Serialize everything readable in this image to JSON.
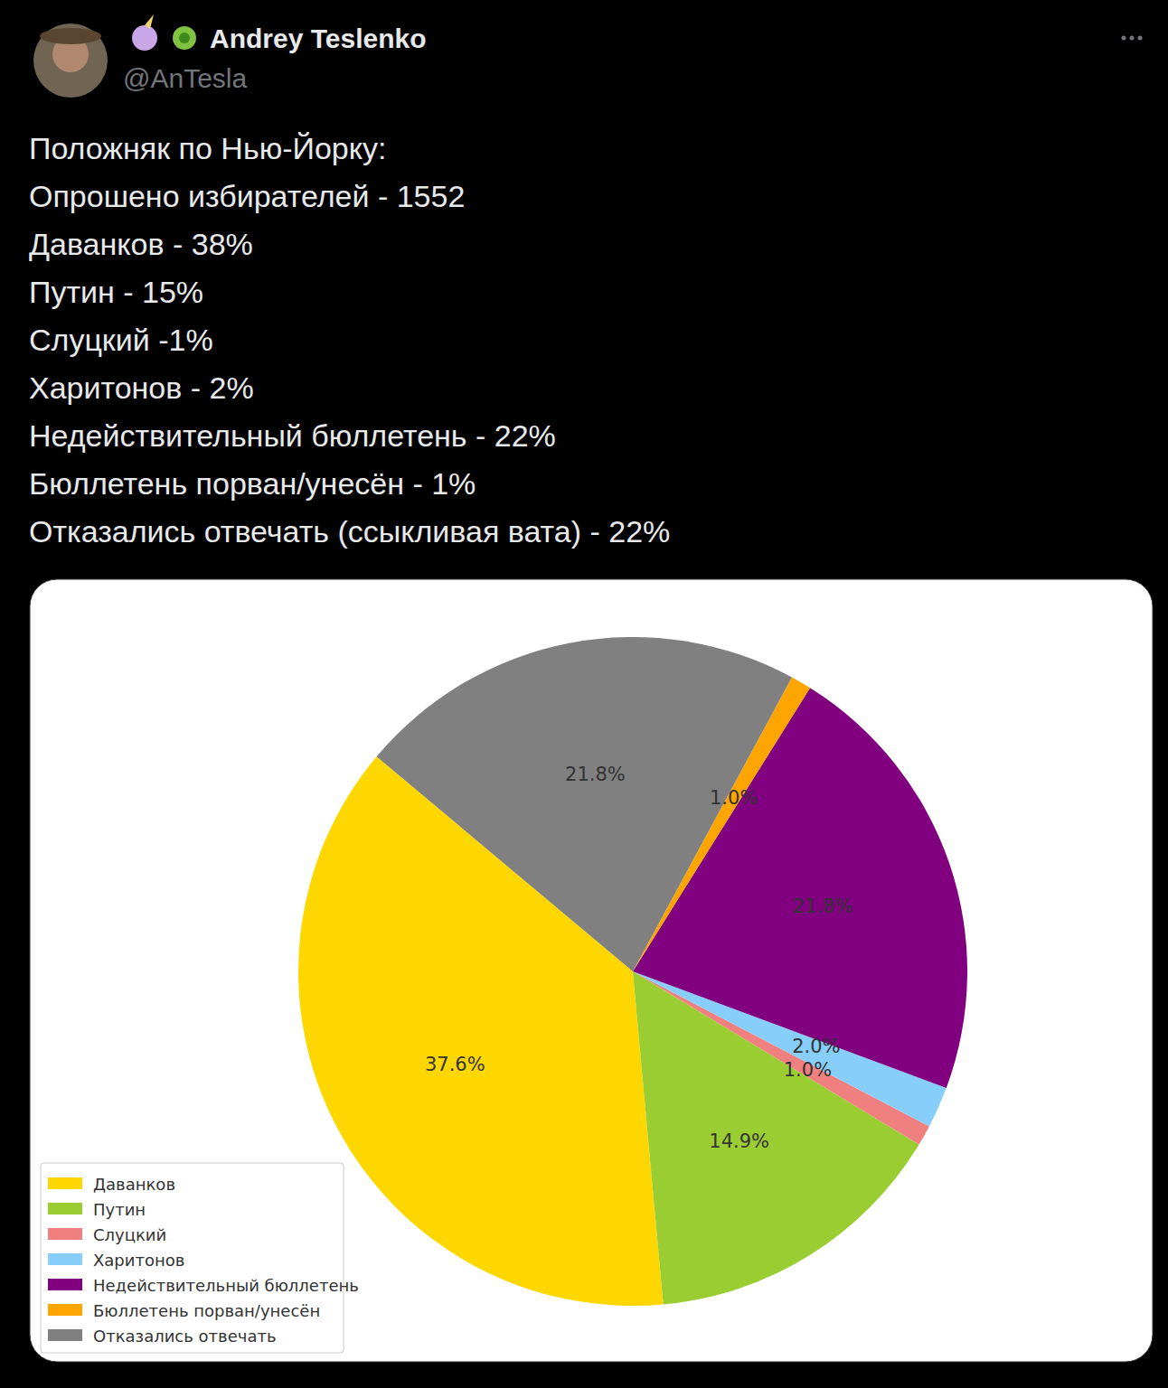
{
  "tweet": {
    "author": "Andrey Teslenko",
    "handle": "@AnTesla",
    "lines": [
      "Положняк по Нью-Йорку:",
      "Опрошено избирателей - 1552",
      "Даванков - 38%",
      "Путин - 15%",
      "Слуцкий -1%",
      "Харитонов - 2%",
      "Недействительный бюллетень - 22%",
      "Бюллетень порван/унесён - 1%",
      "Отказались отвечать (ссыкливая вата) - 22%"
    ]
  },
  "chart_data": {
    "type": "pie",
    "categories": [
      "Даванков",
      "Путин",
      "Слуцкий",
      "Харитонов",
      "Недействительный бюллетень",
      "Бюллетень порван/унесён",
      "Отказались отвечать"
    ],
    "values": [
      37.6,
      14.9,
      1.0,
      2.0,
      21.8,
      1.0,
      21.8
    ],
    "value_labels": [
      "37.6%",
      "14.9%",
      "1.0%",
      "2.0%",
      "21.8%",
      "1.0%",
      "21.8%"
    ],
    "colors": [
      "#FFD700",
      "#9ACD32",
      "#F08080",
      "#87CEFA",
      "#800080",
      "#FFA500",
      "#808080"
    ],
    "data_labels": true,
    "legend": "lower left"
  }
}
